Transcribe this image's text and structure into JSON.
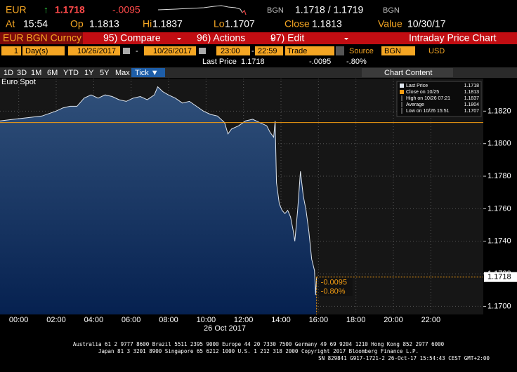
{
  "header": {
    "security": "EUR",
    "arrow": "↑",
    "price": "1.1718",
    "change": "-.0095",
    "quote_ccy_1": "BGN",
    "bid_ask": "1.1718 / 1.1719",
    "quote_ccy_2": "BGN",
    "stats": [
      {
        "label": "At",
        "value": "15:54"
      },
      {
        "label": "Op",
        "value": "1.1813"
      },
      {
        "label": "Hi",
        "value": "1.1837"
      },
      {
        "label": "Lo",
        "value": "1.1707"
      },
      {
        "label": "Close",
        "value": "1.1813"
      },
      {
        "label": "Value",
        "value": "10/30/17"
      }
    ]
  },
  "toolbar": {
    "ticker": "EUR BGN Curncy",
    "buttons": [
      "95) Compare",
      "96) Actions",
      "97) Edit"
    ],
    "title": "Intraday Price Chart"
  },
  "range": {
    "period": "1",
    "unit": "Day(s)",
    "start_date": "10/26/2017",
    "separator": "-",
    "end_date": "10/26/2017",
    "start_time": "23:00",
    "end_time": "22:59",
    "mode": "Trade",
    "source_label": "Source",
    "source": "BGN",
    "currency": "USD"
  },
  "summary": {
    "label": "Last Price",
    "value": "1.1718",
    "change": "-.0095",
    "change_pct": "-.80%"
  },
  "tabs": [
    "1D",
    "3D",
    "1M",
    "6M",
    "YTD",
    "1Y",
    "5Y",
    "Max",
    "Tick ▼"
  ],
  "chart_content": "Chart Content",
  "chart_data": {
    "type": "area",
    "title": "Euro Spot",
    "x_label": "26 Oct 2017",
    "x": [
      -1.0,
      -0.26,
      0.49,
      1.24,
      1.99,
      2.36,
      2.74,
      3.11,
      3.49,
      3.86,
      4.24,
      4.61,
      4.99,
      5.36,
      5.74,
      6.11,
      6.49,
      6.86,
      7.24,
      7.42,
      7.69,
      7.99,
      8.36,
      8.74,
      9.11,
      9.49,
      9.86,
      10.24,
      10.61,
      10.99,
      11.17,
      11.36,
      11.74,
      12.11,
      12.49,
      12.86,
      13.24,
      13.42,
      13.61,
      13.69,
      13.76,
      13.91,
      14.06,
      14.21,
      14.36,
      14.51,
      14.66,
      14.74,
      14.89,
      15.04,
      15.19,
      15.34,
      15.49,
      15.64,
      15.79,
      15.85,
      15.9
    ],
    "series": [
      {
        "name": "Last Price",
        "color": "#dfe6ee",
        "values": [
          1.1814,
          1.1815,
          1.1816,
          1.1817,
          1.182,
          1.1822,
          1.1823,
          1.1823,
          1.1828,
          1.183,
          1.1828,
          1.183,
          1.1829,
          1.1827,
          1.1826,
          1.1828,
          1.1829,
          1.1827,
          1.183,
          1.1835,
          1.1832,
          1.183,
          1.1828,
          1.1825,
          1.1826,
          1.1823,
          1.182,
          1.1818,
          1.1817,
          1.1813,
          1.1806,
          1.1809,
          1.1811,
          1.1814,
          1.1815,
          1.1813,
          1.1811,
          1.1807,
          1.1804,
          1.1814,
          1.1776,
          1.1763,
          1.1759,
          1.1757,
          1.1759,
          1.1755,
          1.1746,
          1.174,
          1.1759,
          1.1783,
          1.1768,
          1.1759,
          1.1746,
          1.1729,
          1.1722,
          1.1707,
          1.1718
        ]
      }
    ],
    "reference_lines": [
      {
        "label": "Close on 10/25",
        "value": 1.1813,
        "color": "#f39c12"
      }
    ],
    "legend_stats": [
      {
        "label": "High on 10/26 07:21",
        "value": 1.1837
      },
      {
        "label": "Average",
        "value": 1.1804
      },
      {
        "label": "Low on 10/26 15:51",
        "value": 1.1707
      }
    ],
    "annotations": [
      "-0.0095",
      "-0.80%"
    ],
    "xlim": [
      -1,
      24.8
    ],
    "xticks": [
      {
        "value": 0,
        "label": "00:00"
      },
      {
        "value": 2,
        "label": "02:00"
      },
      {
        "value": 4,
        "label": "04:00"
      },
      {
        "value": 6,
        "label": "06:00"
      },
      {
        "value": 8,
        "label": "08:00"
      },
      {
        "value": 10,
        "label": "10:00"
      },
      {
        "value": 12,
        "label": "12:00"
      },
      {
        "value": 14,
        "label": "14:00"
      },
      {
        "value": 16,
        "label": "16:00"
      },
      {
        "value": 18,
        "label": "18:00"
      },
      {
        "value": 20,
        "label": "20:00"
      },
      {
        "value": 22,
        "label": "22:00"
      }
    ],
    "ylim": [
      1.1695,
      1.184
    ],
    "yticks": [
      {
        "value": 1.17,
        "label": "1.1700"
      },
      {
        "value": 1.172,
        "label": "1.1720"
      },
      {
        "value": 1.174,
        "label": "1.1740"
      },
      {
        "value": 1.176,
        "label": "1.1760"
      },
      {
        "value": 1.178,
        "label": "1.1780"
      },
      {
        "value": 1.18,
        "label": "1.1800"
      },
      {
        "value": 1.182,
        "label": "1.1820"
      }
    ],
    "grid": true
  },
  "footer": [
    "Australia 61 2 9777 8600 Brazil 5511 2395 9000 Europe 44 20 7330 7500 Germany 49 69 9204 1210 Hong Kong 852 2977 6000",
    "Japan 81 3 3201 8900        Singapore 65 6212 1000        U.S. 1 212 318 2000              Copyright 2017 Bloomberg Finance L.P.",
    "SN 829841 G917-1721-2 26-Oct-17 15:54:43 CEST GMT+2:00"
  ]
}
